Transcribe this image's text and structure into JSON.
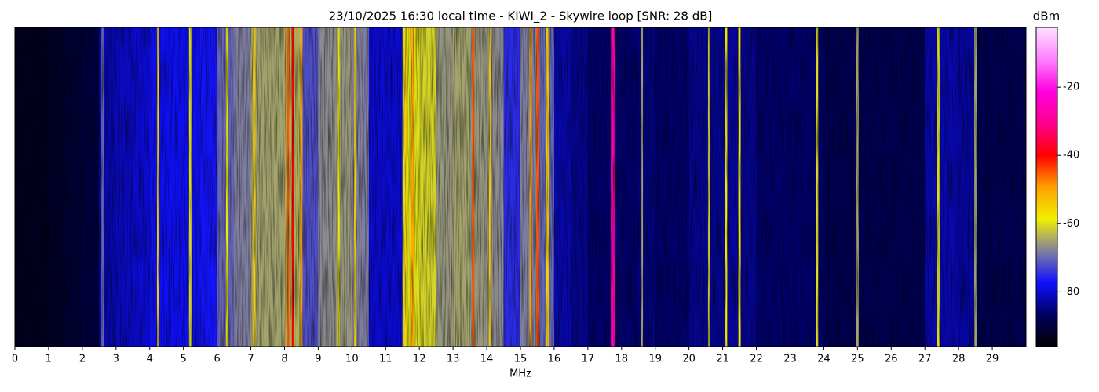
{
  "chart_data": {
    "type": "spectrogram",
    "title": "23/10/2025 16:30 local time - KIWI_2 - Skywire loop [SNR: 28 dB]",
    "xlabel": "MHz",
    "xlim": [
      0,
      30
    ],
    "xticks": [
      0,
      1,
      2,
      3,
      4,
      5,
      6,
      7,
      8,
      9,
      10,
      11,
      12,
      13,
      14,
      15,
      16,
      17,
      18,
      19,
      20,
      21,
      22,
      23,
      24,
      25,
      26,
      27,
      28,
      29
    ],
    "x": [
      0.25,
      0.75,
      1.25,
      1.75,
      2.25,
      2.75,
      3.25,
      3.75,
      4.25,
      4.75,
      5.25,
      5.75,
      6.25,
      6.75,
      7.25,
      7.75,
      8.25,
      8.75,
      9.25,
      9.75,
      10.25,
      10.75,
      11.25,
      11.75,
      12.25,
      12.75,
      13.25,
      13.75,
      14.25,
      14.75,
      15.25,
      15.75,
      16.25,
      16.75,
      17.25,
      17.75,
      18.25,
      18.75,
      19.25,
      19.75,
      20.25,
      20.75,
      21.25,
      21.75,
      22.25,
      22.75,
      23.25,
      23.75,
      24.25,
      24.75,
      25.25,
      25.75,
      26.25,
      26.75,
      27.25,
      27.75,
      28.25,
      28.75,
      29.25,
      29.75
    ],
    "values": [
      -93,
      -93,
      -92,
      -91,
      -90,
      -82,
      -81,
      -80,
      -78,
      -78,
      -78,
      -77,
      -70,
      -68,
      -65,
      -65,
      -64,
      -72,
      -67,
      -66,
      -68,
      -80,
      -80,
      -60,
      -61,
      -66,
      -65,
      -66,
      -67,
      -75,
      -68,
      -70,
      -82,
      -84,
      -86,
      -86,
      -86,
      -85,
      -86,
      -86,
      -84,
      -84,
      -83,
      -84,
      -86,
      -86,
      -86,
      -86,
      -88,
      -88,
      -88,
      -88,
      -88,
      -88,
      -82,
      -82,
      -83,
      -88,
      -88,
      -88
    ],
    "signals": {
      "x": [
        2.6,
        4.25,
        5.2,
        6.3,
        7.1,
        8.1,
        8.25,
        8.5,
        9.6,
        10.1,
        11.6,
        11.8,
        13.6,
        14.1,
        15.3,
        15.5,
        15.8,
        17.75,
        18.6,
        20.6,
        21.1,
        21.5,
        23.8,
        25.0,
        27.4,
        28.5
      ],
      "values": [
        -70,
        -55,
        -60,
        -58,
        -55,
        -45,
        -40,
        -50,
        -58,
        -55,
        -55,
        -50,
        -45,
        -55,
        -50,
        -45,
        -55,
        -28,
        -65,
        -62,
        -58,
        -58,
        -60,
        -65,
        -60,
        -65
      ]
    },
    "zlabel": "dBm",
    "zlim": [
      -96,
      -2.5
    ],
    "zticks": [
      -20,
      -40,
      -60,
      -80
    ],
    "colormap": [
      "#000000",
      "#000060",
      "#1010ff",
      "#8080a0",
      "#f0f000",
      "#ffa000",
      "#ff0000",
      "#ff0090",
      "#ff00e0",
      "#ff80ff",
      "#ffe0ff"
    ]
  }
}
